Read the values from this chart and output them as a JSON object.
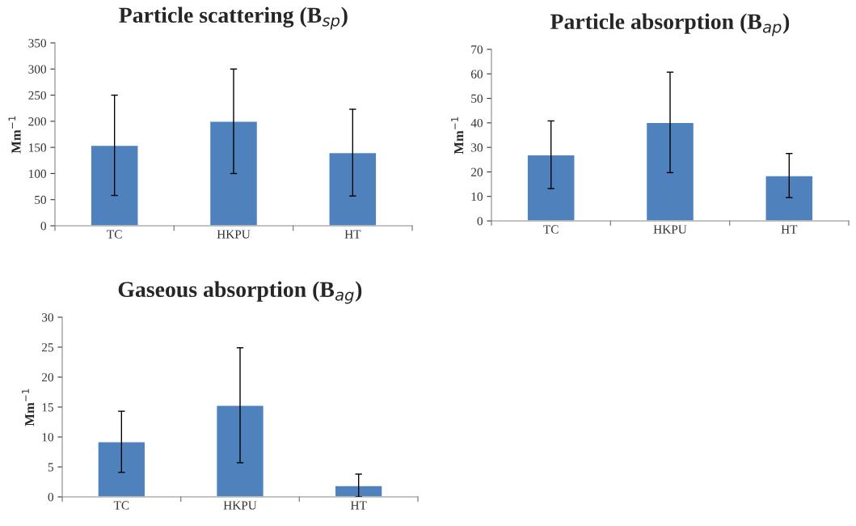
{
  "chart_data": [
    {
      "type": "bar",
      "title": "Particle scattering (B$_{sp}$)",
      "ylabel": "Mm$^{−1}$",
      "categories": [
        "TC",
        "HKPU",
        "HT"
      ],
      "values": [
        154,
        200,
        140
      ],
      "errors": [
        96,
        100,
        83
      ],
      "color": "#4f81bd",
      "ylim": [
        0,
        350
      ],
      "yticks": [
        0,
        50,
        100,
        150,
        200,
        250,
        300,
        350
      ],
      "grid": false,
      "legend": false
    },
    {
      "type": "bar",
      "title": "Particle absorption (B$_{ap}$)",
      "ylabel": "Mm$^{−1}$",
      "categories": [
        "TC",
        "HKPU",
        "HT"
      ],
      "values": [
        27,
        40.2,
        18.5
      ],
      "errors": [
        13.8,
        20.5,
        9
      ],
      "color": "#4f81bd",
      "ylim": [
        0,
        70
      ],
      "yticks": [
        0,
        10,
        20,
        30,
        40,
        50,
        60,
        70
      ],
      "grid": false,
      "legend": false
    },
    {
      "type": "bar",
      "title": "Gaseous absorption (B$_{ag}$)",
      "ylabel": "Mm$^{−1}$",
      "categories": [
        "TC",
        "HKPU",
        "HT"
      ],
      "values": [
        9.2,
        15.3,
        1.9
      ],
      "errors": [
        5.1,
        9.6,
        1.9
      ],
      "color": "#4f81bd",
      "ylim": [
        0,
        30
      ],
      "yticks": [
        0,
        5,
        10,
        15,
        20,
        25,
        30
      ],
      "grid": false,
      "legend": false
    }
  ]
}
